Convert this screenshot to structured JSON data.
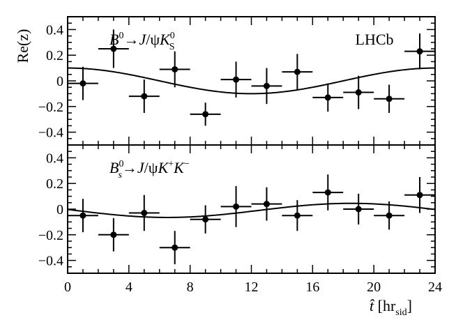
{
  "chart_data": [
    {
      "type": "scatter",
      "ylabel": "Re(z)",
      "annotation": "B0→J/ψK0S",
      "experiment": "LHCb",
      "xlim": [
        0,
        24
      ],
      "ylim": [
        -0.5,
        0.5
      ],
      "yticks": [
        -0.4,
        -0.2,
        0,
        0.2,
        0.4
      ],
      "ytick_labels": [
        "−0.4",
        "−0.2",
        "0",
        "0.2",
        "0.4"
      ],
      "points": [
        {
          "x": 1,
          "y": -0.02,
          "xerr": 1,
          "yerr": 0.13
        },
        {
          "x": 3,
          "y": 0.25,
          "xerr": 1,
          "yerr": 0.15
        },
        {
          "x": 5,
          "y": -0.12,
          "xerr": 1,
          "yerr": 0.13
        },
        {
          "x": 7,
          "y": 0.09,
          "xerr": 1,
          "yerr": 0.14
        },
        {
          "x": 9,
          "y": -0.26,
          "xerr": 1,
          "yerr": 0.09
        },
        {
          "x": 11,
          "y": 0.01,
          "xerr": 1,
          "yerr": 0.14
        },
        {
          "x": 13,
          "y": -0.04,
          "xerr": 1,
          "yerr": 0.14
        },
        {
          "x": 15,
          "y": 0.07,
          "xerr": 1,
          "yerr": 0.14
        },
        {
          "x": 17,
          "y": -0.13,
          "xerr": 1,
          "yerr": 0.11
        },
        {
          "x": 19,
          "y": -0.09,
          "xerr": 1,
          "yerr": 0.13
        },
        {
          "x": 21,
          "y": -0.14,
          "xerr": 1,
          "yerr": 0.11
        },
        {
          "x": 23,
          "y": 0.23,
          "xerr": 1,
          "yerr": 0.14
        }
      ],
      "curve": {
        "form": "cosine",
        "amplitude": 0.1,
        "phase_hr": 0,
        "period_hr": 24
      }
    },
    {
      "type": "scatter",
      "annotation": "B0s→J/ψK+K−",
      "xlabel": "t̂ [hr sid]",
      "xlim": [
        0,
        24
      ],
      "ylim": [
        -0.5,
        0.5
      ],
      "yticks": [
        -0.4,
        -0.2,
        0,
        0.2,
        0.4
      ],
      "ytick_labels": [
        "−0.4",
        "−0.2",
        "0",
        "0.2",
        "0.4"
      ],
      "xticks": [
        0,
        4,
        8,
        12,
        16,
        20,
        24
      ],
      "xtick_labels": [
        "0",
        "4",
        "8",
        "12",
        "16",
        "20",
        "24"
      ],
      "points": [
        {
          "x": 1,
          "y": -0.05,
          "xerr": 1,
          "yerr": 0.13
        },
        {
          "x": 3,
          "y": -0.2,
          "xerr": 1,
          "yerr": 0.13
        },
        {
          "x": 5,
          "y": -0.03,
          "xerr": 1,
          "yerr": 0.14
        },
        {
          "x": 7,
          "y": -0.3,
          "xerr": 1,
          "yerr": 0.13
        },
        {
          "x": 9,
          "y": -0.08,
          "xerr": 1,
          "yerr": 0.11
        },
        {
          "x": 11,
          "y": 0.02,
          "xerr": 1,
          "yerr": 0.16
        },
        {
          "x": 13,
          "y": 0.04,
          "xerr": 1,
          "yerr": 0.13
        },
        {
          "x": 15,
          "y": -0.05,
          "xerr": 1,
          "yerr": 0.12
        },
        {
          "x": 17,
          "y": 0.13,
          "xerr": 1,
          "yerr": 0.14
        },
        {
          "x": 19,
          "y": 0.0,
          "xerr": 1,
          "yerr": 0.12
        },
        {
          "x": 21,
          "y": -0.05,
          "xerr": 1,
          "yerr": 0.11
        },
        {
          "x": 23,
          "y": 0.11,
          "xerr": 1,
          "yerr": 0.14
        }
      ],
      "curve": {
        "form": "cosine",
        "amplitude": 0.055,
        "phase_hr": 18.5,
        "period_hr": 24,
        "offset": -0.01
      }
    }
  ]
}
